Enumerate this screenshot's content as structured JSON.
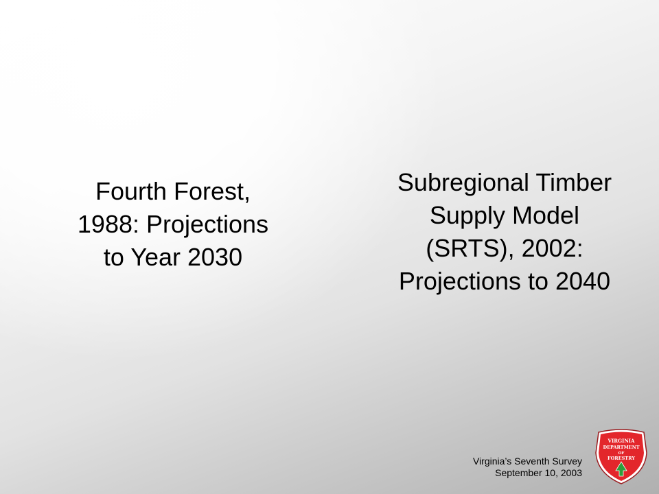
{
  "left_block": {
    "text": "Fourth Forest,\n1988: Projections\nto Year 2030"
  },
  "right_block": {
    "text": "Subregional Timber\nSupply Model\n(SRTS), 2002:\nProjections to 2040"
  },
  "footer": {
    "line1": "Virginia’s Seventh Survey",
    "line2": "September 10, 2003"
  },
  "logo": {
    "icon": "virginia-department-of-forestry-seal-icon",
    "line1": "VIRGINIA",
    "line2": "DEPARTMENT",
    "line3": "OF",
    "line4": "FORESTRY",
    "fill_color": "#e3262b",
    "tree_color": "#2e9e3b"
  }
}
